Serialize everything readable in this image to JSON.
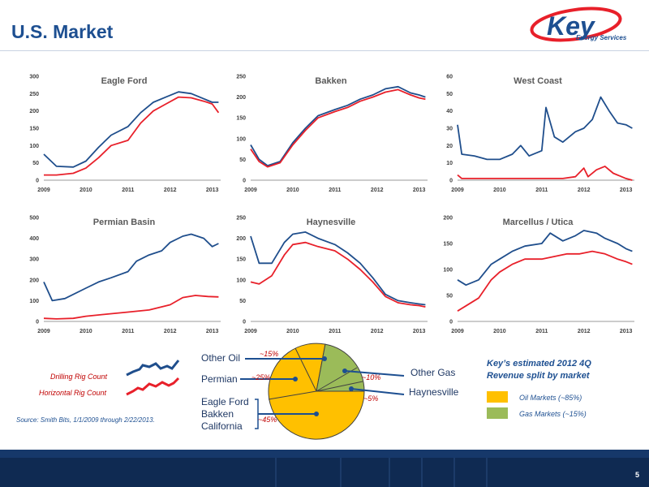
{
  "slide": {
    "title": "U.S. Market",
    "page_number": "5"
  },
  "logo": {
    "text": "Key",
    "tagline": "Energy Services"
  },
  "legend": {
    "drilling_label": "Drilling Rig Count",
    "horizontal_label": "Horizontal Rig Count"
  },
  "colors": {
    "drilling": "#1f4e8c",
    "horizontal": "#e8202a",
    "oil": "#ffc000",
    "gas": "#9bbb59",
    "brand_blue": "#1d4f91"
  },
  "source": "Source: Smith Bits, 1/1/2009 through 2/22/2013.",
  "pie": {
    "labels": {
      "other_oil": "Other Oil",
      "permian": "Permian",
      "eagle_ford": "Eagle Ford",
      "bakken": "Bakken",
      "california": "California",
      "other_gas": "Other Gas",
      "haynesville": "Haynesville"
    },
    "percents": {
      "other_oil": "~15%",
      "permian": "~25%",
      "eagle_ford": "~45%",
      "other_gas": "~10%",
      "haynesville": "~5%"
    }
  },
  "revenue": {
    "heading_line1": "Key’s estimated 2012 4Q",
    "heading_line2": "Revenue split by market",
    "oil_label": "Oil Markets (~85%)",
    "gas_label": "Gas Markets (~15%)"
  },
  "chart_data": [
    {
      "type": "line",
      "title": "Eagle Ford",
      "ylim": [
        0,
        300
      ],
      "yticks": [
        0,
        50,
        100,
        150,
        200,
        250,
        300
      ],
      "xticks": [
        "2009",
        "2010",
        "2011",
        "2012",
        "2013"
      ],
      "xlim": [
        2009,
        2013.2
      ],
      "series": [
        {
          "name": "Drilling Rig Count",
          "x": [
            2009,
            2009.3,
            2009.7,
            2010,
            2010.3,
            2010.6,
            2011,
            2011.3,
            2011.6,
            2011.9,
            2012.2,
            2012.5,
            2012.8,
            2013,
            2013.15
          ],
          "values": [
            75,
            40,
            38,
            55,
            95,
            130,
            155,
            195,
            225,
            240,
            255,
            250,
            235,
            225,
            225
          ]
        },
        {
          "name": "Horizontal Rig Count",
          "x": [
            2009,
            2009.3,
            2009.7,
            2010,
            2010.3,
            2010.6,
            2011,
            2011.3,
            2011.6,
            2011.9,
            2012.2,
            2012.5,
            2012.8,
            2013,
            2013.15
          ],
          "values": [
            15,
            15,
            20,
            35,
            65,
            100,
            115,
            165,
            200,
            220,
            240,
            238,
            228,
            220,
            195
          ]
        }
      ]
    },
    {
      "type": "line",
      "title": "Bakken",
      "ylim": [
        0,
        250
      ],
      "yticks": [
        0,
        50,
        100,
        150,
        200,
        250
      ],
      "xticks": [
        "2009",
        "2010",
        "2011",
        "2012",
        "2013"
      ],
      "xlim": [
        2009,
        2013.2
      ],
      "series": [
        {
          "name": "Drilling Rig Count",
          "x": [
            2009,
            2009.2,
            2009.4,
            2009.7,
            2010,
            2010.3,
            2010.6,
            2011,
            2011.3,
            2011.6,
            2011.9,
            2012.2,
            2012.5,
            2012.8,
            2013,
            2013.15
          ],
          "values": [
            85,
            50,
            35,
            45,
            90,
            125,
            155,
            170,
            180,
            195,
            205,
            220,
            225,
            210,
            205,
            200
          ]
        },
        {
          "name": "Horizontal Rig Count",
          "x": [
            2009,
            2009.2,
            2009.4,
            2009.7,
            2010,
            2010.3,
            2010.6,
            2011,
            2011.3,
            2011.6,
            2011.9,
            2012.2,
            2012.5,
            2012.8,
            2013,
            2013.15
          ],
          "values": [
            75,
            45,
            32,
            42,
            85,
            120,
            150,
            165,
            175,
            190,
            200,
            212,
            218,
            205,
            198,
            195
          ]
        }
      ]
    },
    {
      "type": "line",
      "title": "West Coast",
      "ylim": [
        0,
        60
      ],
      "yticks": [
        0,
        10,
        20,
        30,
        40,
        50,
        60
      ],
      "xticks": [
        "2009",
        "2010",
        "2011",
        "2012",
        "2013"
      ],
      "xlim": [
        2009,
        2013.2
      ],
      "series": [
        {
          "name": "Drilling Rig Count",
          "x": [
            2009,
            2009.1,
            2009.4,
            2009.7,
            2010,
            2010.3,
            2010.5,
            2010.7,
            2011,
            2011.1,
            2011.3,
            2011.5,
            2011.8,
            2012,
            2012.2,
            2012.4,
            2012.6,
            2012.8,
            2013,
            2013.15
          ],
          "values": [
            32,
            15,
            14,
            12,
            12,
            15,
            20,
            14,
            17,
            42,
            25,
            22,
            28,
            30,
            35,
            48,
            40,
            33,
            32,
            30
          ]
        },
        {
          "name": "Horizontal Rig Count",
          "x": [
            2009,
            2009.1,
            2009.5,
            2010,
            2010.5,
            2011,
            2011.5,
            2011.8,
            2012,
            2012.1,
            2012.3,
            2012.5,
            2012.7,
            2013,
            2013.15
          ],
          "values": [
            3,
            1,
            1,
            1,
            1,
            1,
            1,
            2,
            7,
            2,
            6,
            8,
            4,
            1,
            0
          ]
        }
      ]
    },
    {
      "type": "line",
      "title": "Permian Basin",
      "ylim": [
        0,
        500
      ],
      "yticks": [
        0,
        100,
        200,
        300,
        400,
        500
      ],
      "xticks": [
        "2009",
        "2010",
        "2011",
        "2012",
        "2013"
      ],
      "xlim": [
        2009,
        2013.2
      ],
      "series": [
        {
          "name": "Drilling Rig Count",
          "x": [
            2009,
            2009.2,
            2009.5,
            2010,
            2010.3,
            2010.6,
            2011,
            2011.2,
            2011.5,
            2011.8,
            2012,
            2012.3,
            2012.5,
            2012.8,
            2013,
            2013.15
          ],
          "values": [
            190,
            100,
            110,
            160,
            190,
            210,
            240,
            290,
            320,
            340,
            380,
            410,
            420,
            400,
            360,
            375
          ]
        },
        {
          "name": "Horizontal Rig Count",
          "x": [
            2009,
            2009.3,
            2009.7,
            2010,
            2010.5,
            2011,
            2011.5,
            2012,
            2012.3,
            2012.6,
            2012.9,
            2013.15
          ],
          "values": [
            15,
            12,
            15,
            25,
            35,
            45,
            55,
            80,
            115,
            125,
            120,
            118
          ]
        }
      ]
    },
    {
      "type": "line",
      "title": "Haynesville",
      "ylim": [
        0,
        250
      ],
      "yticks": [
        0,
        50,
        100,
        150,
        200,
        250
      ],
      "xticks": [
        "2009",
        "2010",
        "2011",
        "2012",
        "2013"
      ],
      "xlim": [
        2009,
        2013.2
      ],
      "series": [
        {
          "name": "Drilling Rig Count",
          "x": [
            2009,
            2009.2,
            2009.5,
            2009.8,
            2010,
            2010.3,
            2010.6,
            2011,
            2011.3,
            2011.6,
            2011.9,
            2012.2,
            2012.5,
            2012.8,
            2013,
            2013.15
          ],
          "values": [
            205,
            140,
            140,
            190,
            210,
            215,
            200,
            185,
            165,
            140,
            105,
            65,
            50,
            45,
            42,
            40
          ]
        },
        {
          "name": "Horizontal Rig Count",
          "x": [
            2009,
            2009.2,
            2009.5,
            2009.8,
            2010,
            2010.3,
            2010.6,
            2011,
            2011.3,
            2011.6,
            2011.9,
            2012.2,
            2012.5,
            2012.8,
            2013,
            2013.15
          ],
          "values": [
            95,
            90,
            110,
            160,
            185,
            190,
            180,
            170,
            150,
            125,
            95,
            60,
            45,
            40,
            38,
            35
          ]
        }
      ]
    },
    {
      "type": "line",
      "title": "Marcellus / Utica",
      "ylim": [
        0,
        200
      ],
      "yticks": [
        0,
        50,
        100,
        150,
        200
      ],
      "xticks": [
        "2009",
        "2010",
        "2011",
        "2012",
        "2013"
      ],
      "xlim": [
        2009,
        2013.2
      ],
      "series": [
        {
          "name": "Drilling Rig Count",
          "x": [
            2009,
            2009.2,
            2009.5,
            2009.8,
            2010,
            2010.3,
            2010.6,
            2011,
            2011.2,
            2011.5,
            2011.8,
            2012,
            2012.3,
            2012.5,
            2012.8,
            2013,
            2013.15
          ],
          "values": [
            80,
            70,
            80,
            110,
            120,
            135,
            145,
            150,
            170,
            155,
            165,
            175,
            170,
            160,
            150,
            140,
            135
          ]
        },
        {
          "name": "Horizontal Rig Count",
          "x": [
            2009,
            2009.2,
            2009.5,
            2009.8,
            2010,
            2010.3,
            2010.6,
            2011,
            2011.3,
            2011.6,
            2011.9,
            2012.2,
            2012.5,
            2012.8,
            2013,
            2013.15
          ],
          "values": [
            20,
            30,
            45,
            80,
            95,
            110,
            120,
            120,
            125,
            130,
            130,
            135,
            130,
            120,
            115,
            110
          ]
        }
      ]
    }
  ]
}
